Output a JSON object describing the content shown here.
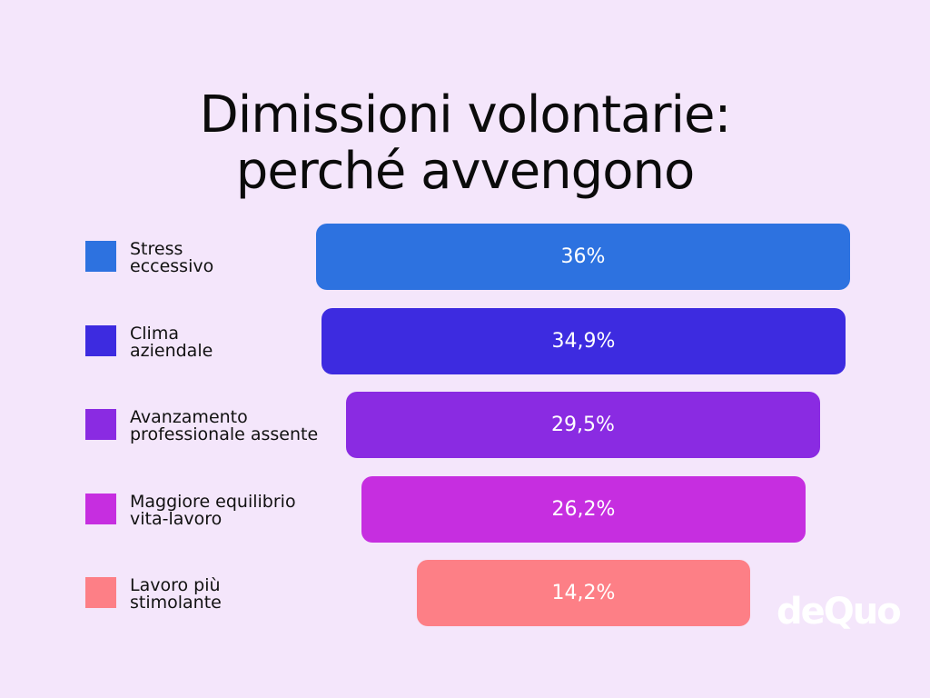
{
  "chart_data": {
    "type": "bar",
    "title": [
      "Dimissioni volontarie:",
      "perché avvengono"
    ],
    "categories": [
      [
        "Stress",
        "eccessivo"
      ],
      [
        "Clima",
        "aziendale"
      ],
      [
        "Avanzamento",
        "professionale assente"
      ],
      [
        "Maggiore equilibrio",
        "vita-lavoro"
      ],
      [
        "Lavoro più",
        "stimolante"
      ]
    ],
    "values": [
      36,
      34.9,
      29.5,
      26.2,
      14.2
    ],
    "value_labels": [
      "36%",
      "34,9%",
      "29,5%",
      "26,2%",
      "14,2%"
    ],
    "colors": [
      "#2d72e0",
      "#3d2be0",
      "#8a2be2",
      "#c62ee0",
      "#fd7f86"
    ],
    "legend": "left",
    "grid": false
  },
  "logo": "deQuo"
}
